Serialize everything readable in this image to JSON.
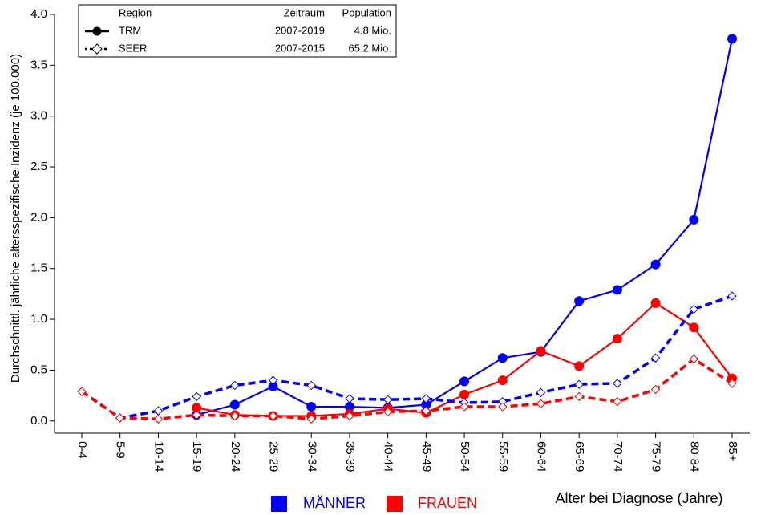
{
  "chart_data": {
    "type": "line",
    "y_label": "Durchschnittl. jährliche altersspezifische Inzidenz (je 100.000)",
    "x_label": "Alter bei Diagnose (Jahre)",
    "categories": [
      "0-4",
      "5-9",
      "10-14",
      "15-19",
      "20-24",
      "25-29",
      "30-34",
      "35-39",
      "40-44",
      "45-49",
      "50-54",
      "55-59",
      "60-64",
      "65-69",
      "70-74",
      "75-79",
      "80-84",
      "85+"
    ],
    "series": [
      {
        "color": "#0000ff",
        "style": "solid",
        "marker": "circle",
        "values": [
          null,
          null,
          null,
          0.06,
          0.16,
          0.34,
          0.14,
          0.14,
          0.13,
          0.16,
          0.39,
          0.62,
          0.68,
          1.18,
          1.29,
          1.54,
          1.98,
          3.76
        ]
      },
      {
        "color": "#ff0000",
        "style": "solid",
        "marker": "circle",
        "values": [
          null,
          null,
          null,
          0.13,
          0.06,
          0.05,
          0.05,
          0.07,
          0.12,
          0.08,
          0.26,
          0.4,
          0.69,
          0.54,
          0.81,
          1.16,
          0.92,
          0.42
        ]
      },
      {
        "color": "#0000ff",
        "style": "dashed",
        "marker": "diamond",
        "values": [
          0.29,
          0.03,
          0.1,
          0.24,
          0.35,
          0.4,
          0.35,
          0.22,
          0.21,
          0.22,
          0.18,
          0.19,
          0.28,
          0.36,
          0.37,
          0.62,
          1.1,
          1.23
        ]
      },
      {
        "color": "#ff0000",
        "style": "dashed",
        "marker": "diamond",
        "values": [
          0.29,
          0.03,
          0.02,
          0.06,
          0.05,
          0.05,
          0.02,
          0.05,
          0.09,
          0.1,
          0.14,
          0.14,
          0.17,
          0.24,
          0.19,
          0.31,
          0.61,
          0.37
        ]
      }
    ],
    "ylim": [
      -0.12,
      4.0
    ],
    "yticks": [
      {
        "value": 0,
        "label": "0.0"
      },
      0.5,
      {
        "value": 1,
        "label": "1.0"
      },
      1.5,
      {
        "value": 2,
        "label": "2.0"
      },
      2.5,
      {
        "value": 3,
        "label": "3.0"
      },
      3.5,
      {
        "value": 4,
        "label": "4.0"
      }
    ],
    "legend": {
      "headers": [
        "Region",
        "Zeitraum",
        "Population"
      ],
      "rows": [
        [
          "TRM",
          "2007-2019",
          "4.8 Mio."
        ],
        [
          "SEER",
          "2007-2015",
          "65.2 Mio."
        ]
      ]
    },
    "sex_legend": [
      {
        "label": "MÄNNER",
        "color": "#0000ff"
      },
      {
        "label": "FRAUEN",
        "color": "#ff0000"
      }
    ]
  }
}
